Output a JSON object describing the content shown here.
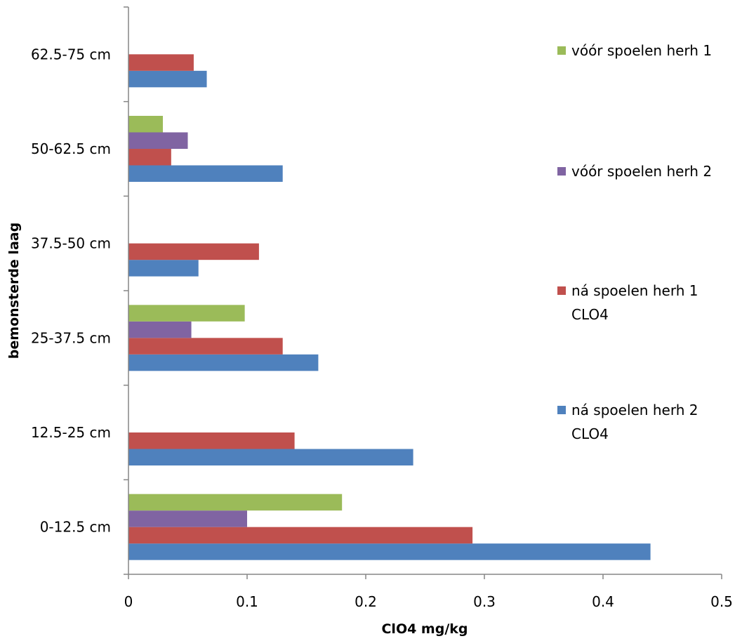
{
  "chart_data": {
    "type": "bar",
    "orientation": "horizontal",
    "categories": [
      "0-12.5 cm",
      "12.5-25 cm",
      "25-37.5 cm",
      "37.5-50 cm",
      "50-62.5 cm",
      "62.5-75 cm"
    ],
    "series": [
      {
        "name": [
          "ná spoelen herh 2",
          "CLO4"
        ],
        "color": "#4f81bd",
        "values": [
          0.44,
          0.24,
          0.16,
          0.059,
          0.13,
          0.066
        ]
      },
      {
        "name": [
          "ná spoelen herh 1",
          "CLO4"
        ],
        "color": "#c0504d",
        "values": [
          0.29,
          0.14,
          0.13,
          0.11,
          0.036,
          0.055
        ]
      },
      {
        "name": [
          "vóór  spoelen herh 2"
        ],
        "color": "#8064a2",
        "values": [
          0.1,
          null,
          0.053,
          null,
          0.05,
          null
        ]
      },
      {
        "name": [
          "vóór spoelen herh 1"
        ],
        "color": "#9bbb59",
        "values": [
          0.18,
          null,
          0.098,
          null,
          0.029,
          null
        ]
      }
    ],
    "xlabel": "ClO4  mg/kg",
    "ylabel": "bemonsterde laag",
    "xlim": [
      0,
      0.5
    ],
    "xticks": [
      "0",
      "0.1",
      "0.2",
      "0.3",
      "0.4",
      "0.5"
    ],
    "grid": false,
    "legend_position": "right",
    "legend_order": [
      3,
      2,
      1,
      0
    ]
  }
}
